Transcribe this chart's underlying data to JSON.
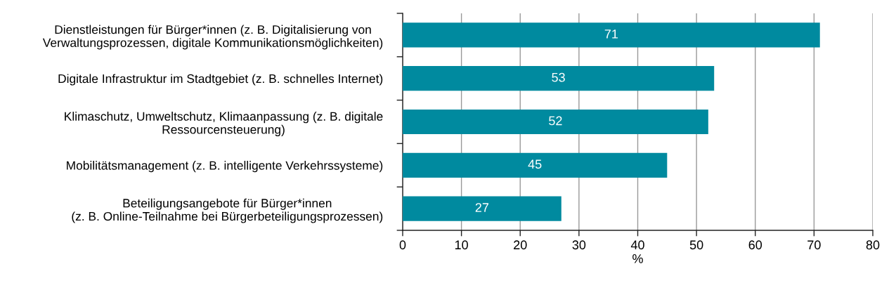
{
  "chart_data": {
    "type": "bar",
    "orientation": "horizontal",
    "categories": [
      "Dienstleistungen für Bürger*innen (z. B. Digitalisierung von\nVerwaltungsprozessen, digitale Kommunikationsmöglichkeiten)",
      "Digitale Infrastruktur im Stadtgebiet (z. B. schnelles Internet)",
      "Klimaschutz, Umweltschutz, Klimaanpassung (z. B. digitale\nRessourcensteuerung)",
      "Mobilitätsmanagement (z. B. intelligente Verkehrssysteme)",
      "Beteiligungsangebote für Bürger*innen\n(z. B. Online-Teilnahme bei Bürgerbeteiligungsprozessen)"
    ],
    "values": [
      71,
      53,
      52,
      45,
      27
    ],
    "color": "#008a9f",
    "xlim": [
      0,
      80
    ],
    "xticks": [
      0,
      10,
      20,
      30,
      40,
      50,
      60,
      70,
      80
    ],
    "xlabel": "%",
    "grid": "x",
    "data_labels": true
  }
}
